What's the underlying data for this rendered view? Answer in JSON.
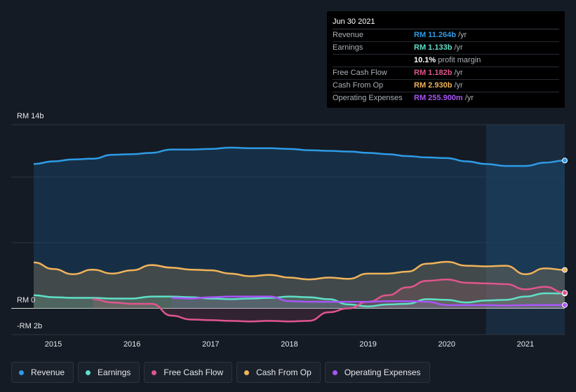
{
  "tooltip": {
    "date": "Jun 30 2021",
    "rows": [
      {
        "label": "Revenue",
        "value": "RM 11.264b",
        "unit": " /yr",
        "color": "#2e9be6"
      },
      {
        "label": "Earnings",
        "value": "RM 1.133b",
        "unit": " /yr",
        "color": "#5fe0c8"
      },
      {
        "label": "",
        "value": "10.1%",
        "unit": " profit margin",
        "color": "#ffffff"
      },
      {
        "label": "Free Cash Flow",
        "value": "RM 1.182b",
        "unit": " /yr",
        "color": "#e0558d"
      },
      {
        "label": "Cash From Op",
        "value": "RM 2.930b",
        "unit": " /yr",
        "color": "#f0b35a"
      },
      {
        "label": "Operating Expenses",
        "value": "RM 255.900m",
        "unit": " /yr",
        "color": "#a855f7"
      }
    ]
  },
  "legend": [
    {
      "label": "Revenue",
      "color": "#2e9be6"
    },
    {
      "label": "Earnings",
      "color": "#5fe0c8"
    },
    {
      "label": "Free Cash Flow",
      "color": "#e0558d"
    },
    {
      "label": "Cash From Op",
      "color": "#f0b35a"
    },
    {
      "label": "Operating Expenses",
      "color": "#a855f7"
    }
  ],
  "chart_data": {
    "type": "area",
    "y_top_label": "RM 14b",
    "y_zero_label": "RM 0",
    "y_bottom_label": "-RM 2b",
    "ylim": [
      -2,
      14
    ],
    "xlim": [
      2014.75,
      2021.5
    ],
    "forecast_start": 2020.5,
    "x_ticks": [
      2015,
      2016,
      2017,
      2018,
      2019,
      2020,
      2021
    ],
    "x_tick_labels": [
      "2015",
      "2016",
      "2017",
      "2018",
      "2019",
      "2020",
      "2021"
    ],
    "series": [
      {
        "name": "Revenue",
        "color": "#2e9be6",
        "fill": true,
        "x": [
          2014.75,
          2015.0,
          2015.25,
          2015.5,
          2015.75,
          2016.0,
          2016.25,
          2016.5,
          2016.75,
          2017.0,
          2017.25,
          2017.5,
          2017.75,
          2018.0,
          2018.25,
          2018.5,
          2018.75,
          2019.0,
          2019.25,
          2019.5,
          2019.75,
          2020.0,
          2020.25,
          2020.5,
          2020.75,
          2021.0,
          2021.25,
          2021.5
        ],
        "y": [
          11.0,
          11.2,
          11.35,
          11.4,
          11.7,
          11.75,
          11.85,
          12.1,
          12.1,
          12.15,
          12.25,
          12.2,
          12.2,
          12.15,
          12.05,
          12.0,
          11.95,
          11.85,
          11.75,
          11.6,
          11.5,
          11.45,
          11.2,
          11.0,
          10.85,
          10.85,
          11.1,
          11.264
        ]
      },
      {
        "name": "Earnings",
        "color": "#5fe0c8",
        "fill": false,
        "x": [
          2014.75,
          2015.0,
          2015.25,
          2015.5,
          2015.75,
          2016.0,
          2016.25,
          2016.5,
          2016.75,
          2017.0,
          2017.25,
          2017.5,
          2017.75,
          2018.0,
          2018.25,
          2018.5,
          2018.75,
          2019.0,
          2019.25,
          2019.5,
          2019.75,
          2020.0,
          2020.25,
          2020.5,
          2020.75,
          2021.0,
          2021.25,
          2021.5
        ],
        "y": [
          1.0,
          0.85,
          0.8,
          0.8,
          0.75,
          0.75,
          0.9,
          0.9,
          0.85,
          0.75,
          0.7,
          0.75,
          0.8,
          0.9,
          0.85,
          0.7,
          0.3,
          0.15,
          0.3,
          0.35,
          0.7,
          0.65,
          0.45,
          0.6,
          0.65,
          0.9,
          1.15,
          1.133
        ]
      },
      {
        "name": "Free Cash Flow",
        "color": "#e0558d",
        "fill": false,
        "x": [
          2015.5,
          2015.75,
          2016.0,
          2016.25,
          2016.5,
          2016.75,
          2017.0,
          2017.25,
          2017.5,
          2017.75,
          2018.0,
          2018.25,
          2018.5,
          2018.75,
          2019.0,
          2019.25,
          2019.5,
          2019.75,
          2020.0,
          2020.25,
          2020.5,
          2020.75,
          2021.0,
          2021.25,
          2021.5
        ],
        "y": [
          0.7,
          0.45,
          0.35,
          0.35,
          -0.55,
          -0.85,
          -0.9,
          -0.95,
          -1.0,
          -0.95,
          -1.0,
          -0.95,
          -0.3,
          0.0,
          0.5,
          1.0,
          1.6,
          2.1,
          2.2,
          1.95,
          1.9,
          1.85,
          1.45,
          1.65,
          1.182
        ]
      },
      {
        "name": "Cash From Op",
        "color": "#f0b35a",
        "fill": false,
        "x": [
          2014.75,
          2015.0,
          2015.25,
          2015.5,
          2015.75,
          2016.0,
          2016.25,
          2016.5,
          2016.75,
          2017.0,
          2017.25,
          2017.5,
          2017.75,
          2018.0,
          2018.25,
          2018.5,
          2018.75,
          2019.0,
          2019.25,
          2019.5,
          2019.75,
          2020.0,
          2020.25,
          2020.5,
          2020.75,
          2021.0,
          2021.25,
          2021.5
        ],
        "y": [
          3.5,
          3.0,
          2.6,
          2.95,
          2.65,
          2.9,
          3.3,
          3.1,
          2.95,
          2.9,
          2.65,
          2.45,
          2.55,
          2.35,
          2.2,
          2.35,
          2.25,
          2.65,
          2.65,
          2.8,
          3.4,
          3.55,
          3.25,
          3.2,
          3.25,
          2.6,
          3.05,
          2.93
        ]
      },
      {
        "name": "Operating Expenses",
        "color": "#a855f7",
        "fill": false,
        "x": [
          2016.5,
          2016.75,
          2017.0,
          2017.25,
          2017.5,
          2017.75,
          2018.0,
          2018.25,
          2018.5,
          2018.75,
          2019.0,
          2019.25,
          2019.5,
          2019.75,
          2020.0,
          2020.25,
          2020.5,
          2020.75,
          2021.0,
          2021.25,
          2021.5
        ],
        "y": [
          0.8,
          0.75,
          0.85,
          0.9,
          0.9,
          0.9,
          0.55,
          0.5,
          0.5,
          0.5,
          0.5,
          0.55,
          0.55,
          0.5,
          0.25,
          0.25,
          0.25,
          0.22,
          0.25,
          0.26,
          0.256
        ]
      }
    ]
  }
}
